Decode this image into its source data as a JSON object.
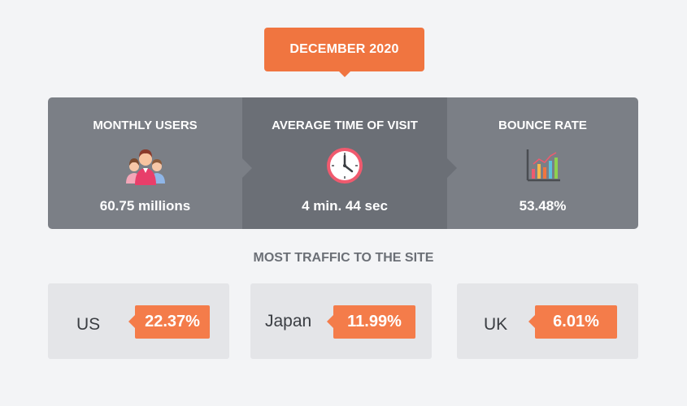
{
  "header": {
    "date_label": "DECEMBER 2020"
  },
  "stats": [
    {
      "title": "MONTHLY USERS",
      "icon": "users-icon",
      "value": "60.75 millions"
    },
    {
      "title": "AVERAGE TIME OF VISIT",
      "icon": "clock-icon",
      "value": "4 min. 44 sec"
    },
    {
      "title": "BOUNCE RATE",
      "icon": "bar-chart-icon",
      "value": "53.48%"
    }
  ],
  "traffic": {
    "title": "MOST TRAFFIC TO THE SITE",
    "countries": [
      {
        "name": "US",
        "percent": "22.37%"
      },
      {
        "name": "Japan",
        "percent": "11.99%"
      },
      {
        "name": "UK",
        "percent": "6.01%"
      }
    ]
  },
  "colors": {
    "accent": "#f07540",
    "panel": "#7b7f86",
    "panel_dark": "#6b6f76",
    "card": "#e4e5e8"
  }
}
